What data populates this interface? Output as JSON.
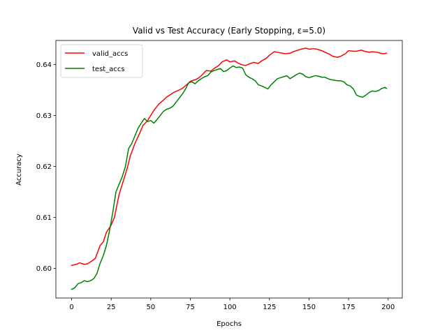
{
  "chart_data": {
    "type": "line",
    "title": "Valid vs Test Accuracy (Early Stopping, ε=5.0)",
    "xlabel": "Epochs",
    "ylabel": "Accuracy",
    "xlim": [
      -9.95,
      208.95
    ],
    "ylim": [
      0.5942,
      0.6447
    ],
    "x_ticks": [
      0,
      25,
      50,
      75,
      100,
      125,
      150,
      175,
      200
    ],
    "x_tick_labels": [
      "0",
      "25",
      "50",
      "75",
      "100",
      "125",
      "150",
      "175",
      "200"
    ],
    "y_ticks": [
      0.6,
      0.61,
      0.62,
      0.63,
      0.64
    ],
    "y_tick_labels": [
      "0.60",
      "0.61",
      "0.62",
      "0.63",
      "0.64"
    ],
    "legend": {
      "position": "upper-left"
    },
    "grid": false,
    "series": [
      {
        "name": "valid_accs",
        "color": "#ff0000",
        "points": [
          [
            0,
            0.6006
          ],
          [
            3,
            0.6008
          ],
          [
            5,
            0.6011
          ],
          [
            8,
            0.6008
          ],
          [
            10,
            0.6009
          ],
          [
            13,
            0.6015
          ],
          [
            15,
            0.602
          ],
          [
            18,
            0.6045
          ],
          [
            20,
            0.6052
          ],
          [
            22,
            0.6071
          ],
          [
            25,
            0.6085
          ],
          [
            27,
            0.61
          ],
          [
            30,
            0.6145
          ],
          [
            32,
            0.6165
          ],
          [
            35,
            0.6195
          ],
          [
            37,
            0.622
          ],
          [
            40,
            0.6245
          ],
          [
            43,
            0.6265
          ],
          [
            45,
            0.628
          ],
          [
            48,
            0.629
          ],
          [
            50,
            0.63
          ],
          [
            52,
            0.631
          ],
          [
            55,
            0.6322
          ],
          [
            58,
            0.633
          ],
          [
            60,
            0.6336
          ],
          [
            63,
            0.6342
          ],
          [
            65,
            0.6346
          ],
          [
            68,
            0.635
          ],
          [
            70,
            0.6353
          ],
          [
            73,
            0.6361
          ],
          [
            75,
            0.6367
          ],
          [
            78,
            0.637
          ],
          [
            80,
            0.6373
          ],
          [
            82,
            0.6378
          ],
          [
            85,
            0.6388
          ],
          [
            88,
            0.6387
          ],
          [
            90,
            0.6392
          ],
          [
            93,
            0.6398
          ],
          [
            95,
            0.6405
          ],
          [
            98,
            0.6409
          ],
          [
            100,
            0.6405
          ],
          [
            103,
            0.6407
          ],
          [
            105,
            0.6403
          ],
          [
            108,
            0.6399
          ],
          [
            110,
            0.6398
          ],
          [
            113,
            0.6402
          ],
          [
            115,
            0.6404
          ],
          [
            118,
            0.6402
          ],
          [
            120,
            0.6407
          ],
          [
            123,
            0.6412
          ],
          [
            125,
            0.6418
          ],
          [
            128,
            0.6425
          ],
          [
            130,
            0.6424
          ],
          [
            133,
            0.6422
          ],
          [
            135,
            0.6421
          ],
          [
            138,
            0.6422
          ],
          [
            140,
            0.6425
          ],
          [
            143,
            0.6428
          ],
          [
            145,
            0.643
          ],
          [
            148,
            0.6432
          ],
          [
            150,
            0.643
          ],
          [
            153,
            0.6431
          ],
          [
            155,
            0.643
          ],
          [
            158,
            0.6427
          ],
          [
            160,
            0.6424
          ],
          [
            163,
            0.642
          ],
          [
            165,
            0.6416
          ],
          [
            168,
            0.6414
          ],
          [
            170,
            0.6416
          ],
          [
            173,
            0.6421
          ],
          [
            175,
            0.6427
          ],
          [
            178,
            0.6426
          ],
          [
            180,
            0.6426
          ],
          [
            183,
            0.6428
          ],
          [
            185,
            0.6426
          ],
          [
            188,
            0.6424
          ],
          [
            190,
            0.6425
          ],
          [
            193,
            0.6424
          ],
          [
            195,
            0.6422
          ],
          [
            197,
            0.6421
          ],
          [
            199,
            0.6422
          ]
        ]
      },
      {
        "name": "test_accs",
        "color": "#008000",
        "points": [
          [
            0,
            0.5959
          ],
          [
            2,
            0.5962
          ],
          [
            4,
            0.597
          ],
          [
            6,
            0.5972
          ],
          [
            8,
            0.5976
          ],
          [
            10,
            0.5974
          ],
          [
            12,
            0.5976
          ],
          [
            14,
            0.598
          ],
          [
            16,
            0.599
          ],
          [
            18,
            0.601
          ],
          [
            20,
            0.6025
          ],
          [
            22,
            0.6045
          ],
          [
            24,
            0.6075
          ],
          [
            26,
            0.611
          ],
          [
            28,
            0.615
          ],
          [
            30,
            0.6165
          ],
          [
            32,
            0.618
          ],
          [
            34,
            0.62
          ],
          [
            36,
            0.6235
          ],
          [
            38,
            0.6245
          ],
          [
            40,
            0.626
          ],
          [
            42,
            0.6275
          ],
          [
            44,
            0.6285
          ],
          [
            46,
            0.6294
          ],
          [
            48,
            0.6288
          ],
          [
            50,
            0.629
          ],
          [
            52,
            0.6285
          ],
          [
            54,
            0.6292
          ],
          [
            56,
            0.63
          ],
          [
            58,
            0.6308
          ],
          [
            60,
            0.6312
          ],
          [
            62,
            0.6314
          ],
          [
            64,
            0.6318
          ],
          [
            66,
            0.6326
          ],
          [
            68,
            0.6334
          ],
          [
            70,
            0.6342
          ],
          [
            72,
            0.6352
          ],
          [
            74,
            0.6364
          ],
          [
            76,
            0.6366
          ],
          [
            78,
            0.6362
          ],
          [
            80,
            0.6368
          ],
          [
            82,
            0.6372
          ],
          [
            84,
            0.6376
          ],
          [
            86,
            0.6378
          ],
          [
            88,
            0.6385
          ],
          [
            90,
            0.6388
          ],
          [
            92,
            0.639
          ],
          [
            94,
            0.6392
          ],
          [
            96,
            0.6386
          ],
          [
            98,
            0.6388
          ],
          [
            100,
            0.6393
          ],
          [
            102,
            0.6397
          ],
          [
            104,
            0.6394
          ],
          [
            106,
            0.6395
          ],
          [
            108,
            0.6393
          ],
          [
            110,
            0.638
          ],
          [
            112,
            0.6375
          ],
          [
            114,
            0.6372
          ],
          [
            116,
            0.6368
          ],
          [
            118,
            0.636
          ],
          [
            120,
            0.6358
          ],
          [
            122,
            0.6355
          ],
          [
            124,
            0.6352
          ],
          [
            126,
            0.636
          ],
          [
            128,
            0.6366
          ],
          [
            130,
            0.6372
          ],
          [
            132,
            0.6374
          ],
          [
            134,
            0.6376
          ],
          [
            136,
            0.6378
          ],
          [
            138,
            0.6372
          ],
          [
            140,
            0.6376
          ],
          [
            142,
            0.638
          ],
          [
            144,
            0.6383
          ],
          [
            146,
            0.6381
          ],
          [
            148,
            0.6376
          ],
          [
            150,
            0.6374
          ],
          [
            152,
            0.6376
          ],
          [
            154,
            0.6378
          ],
          [
            156,
            0.6377
          ],
          [
            158,
            0.6375
          ],
          [
            160,
            0.6375
          ],
          [
            162,
            0.6372
          ],
          [
            164,
            0.637
          ],
          [
            166,
            0.6369
          ],
          [
            168,
            0.6368
          ],
          [
            170,
            0.6368
          ],
          [
            172,
            0.6366
          ],
          [
            174,
            0.636
          ],
          [
            176,
            0.6358
          ],
          [
            178,
            0.6352
          ],
          [
            180,
            0.634
          ],
          [
            182,
            0.6337
          ],
          [
            184,
            0.6336
          ],
          [
            186,
            0.634
          ],
          [
            188,
            0.6345
          ],
          [
            190,
            0.6348
          ],
          [
            192,
            0.6347
          ],
          [
            194,
            0.6349
          ],
          [
            196,
            0.6353
          ],
          [
            198,
            0.6355
          ],
          [
            199,
            0.6353
          ]
        ]
      }
    ]
  }
}
